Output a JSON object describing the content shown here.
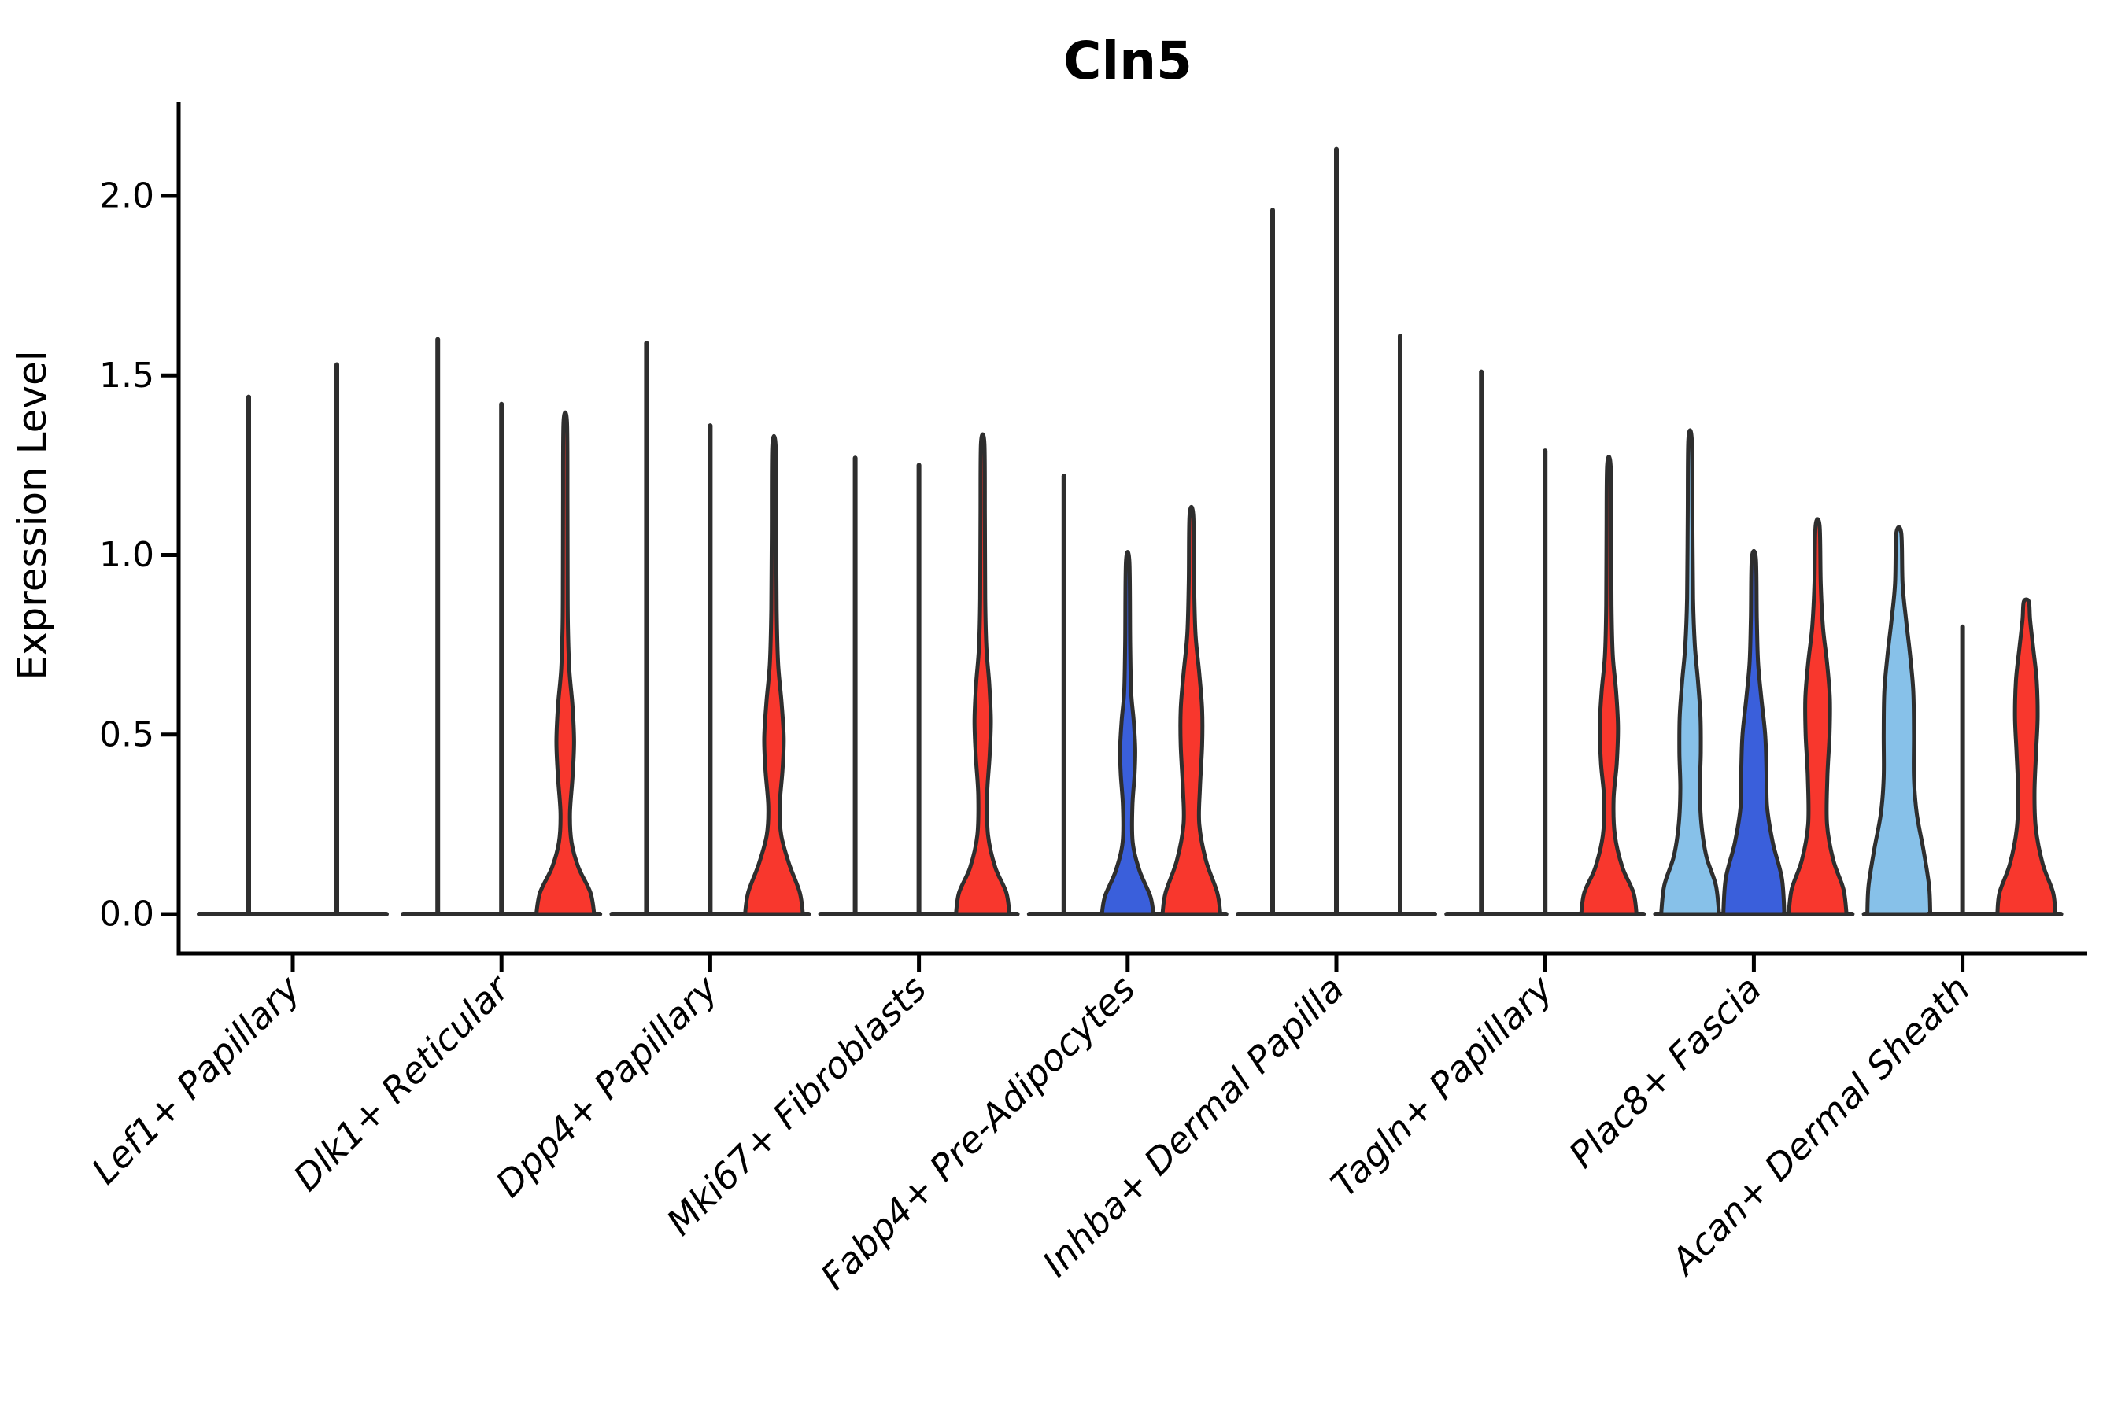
{
  "chart_data": {
    "type": "violin",
    "title": "Cln5",
    "ylabel": "Expression Level",
    "xlabel": "",
    "ylim": [
      0,
      2.26
    ],
    "grid": false,
    "legend": "none",
    "yticks": [
      {
        "value": 0.0,
        "label": "0.0"
      },
      {
        "value": 0.5,
        "label": "0.5"
      },
      {
        "value": 1.0,
        "label": "1.0"
      },
      {
        "value": 1.5,
        "label": "1.5"
      },
      {
        "value": 2.0,
        "label": "2.0"
      }
    ],
    "colors": {
      "red": "#F8372D",
      "blue": "#3A5FDB",
      "light_blue": "#87C1E9",
      "outline": "#2E2E2E",
      "baseline": "#2E2E2E",
      "axis": "#000000"
    },
    "categories": [
      {
        "label": "Lef1+ Papillary",
        "violins": [
          {
            "kind": "line",
            "max": 1.44
          },
          {
            "kind": "line",
            "max": 1.53
          }
        ]
      },
      {
        "label": "Dlk1+ Reticular",
        "violins": [
          {
            "kind": "line",
            "max": 1.6
          },
          {
            "kind": "line",
            "max": 1.42
          },
          {
            "kind": "violin",
            "color": "red",
            "max": 1.37,
            "profile": [
              [
                0,
                0.92
              ],
              [
                0.06,
                0.8
              ],
              [
                0.13,
                0.42
              ],
              [
                0.2,
                0.2
              ],
              [
                0.28,
                0.15
              ],
              [
                0.38,
                0.23
              ],
              [
                0.48,
                0.28
              ],
              [
                0.58,
                0.23
              ],
              [
                0.68,
                0.13
              ],
              [
                0.8,
                0.085
              ],
              [
                0.95,
                0.075
              ],
              [
                1.15,
                0.07
              ],
              [
                1.37,
                0.055
              ]
            ]
          }
        ]
      },
      {
        "label": "Dpp4+ Papillary",
        "violins": [
          {
            "kind": "line",
            "max": 1.59
          },
          {
            "kind": "line",
            "max": 1.36
          },
          {
            "kind": "violin",
            "color": "red",
            "max": 1.3,
            "profile": [
              [
                0,
                0.92
              ],
              [
                0.06,
                0.82
              ],
              [
                0.14,
                0.48
              ],
              [
                0.22,
                0.23
              ],
              [
                0.3,
                0.18
              ],
              [
                0.4,
                0.27
              ],
              [
                0.49,
                0.31
              ],
              [
                0.59,
                0.24
              ],
              [
                0.7,
                0.13
              ],
              [
                0.85,
                0.085
              ],
              [
                1.05,
                0.07
              ],
              [
                1.3,
                0.055
              ]
            ]
          }
        ]
      },
      {
        "label": "Mki67+ Fibroblasts",
        "violins": [
          {
            "kind": "line",
            "max": 1.27
          },
          {
            "kind": "line",
            "max": 1.25
          },
          {
            "kind": "violin",
            "color": "red",
            "max": 1.31,
            "profile": [
              [
                0,
                0.85
              ],
              [
                0.06,
                0.75
              ],
              [
                0.13,
                0.4
              ],
              [
                0.22,
                0.17
              ],
              [
                0.33,
                0.14
              ],
              [
                0.44,
                0.22
              ],
              [
                0.54,
                0.26
              ],
              [
                0.64,
                0.21
              ],
              [
                0.74,
                0.12
              ],
              [
                0.88,
                0.08
              ],
              [
                1.1,
                0.07
              ],
              [
                1.31,
                0.055
              ]
            ]
          }
        ]
      },
      {
        "label": "Fabp4+ Pre-Adipocytes",
        "violins": [
          {
            "kind": "line",
            "max": 1.22
          },
          {
            "kind": "violin",
            "color": "blue",
            "max": 0.98,
            "profile": [
              [
                0,
                0.82
              ],
              [
                0.05,
                0.72
              ],
              [
                0.12,
                0.38
              ],
              [
                0.2,
                0.16
              ],
              [
                0.3,
                0.15
              ],
              [
                0.39,
                0.22
              ],
              [
                0.46,
                0.24
              ],
              [
                0.54,
                0.19
              ],
              [
                0.62,
                0.11
              ],
              [
                0.75,
                0.08
              ],
              [
                0.98,
                0.055
              ]
            ]
          },
          {
            "kind": "violin",
            "color": "red",
            "max": 1.11,
            "profile": [
              [
                0,
                0.92
              ],
              [
                0.06,
                0.82
              ],
              [
                0.15,
                0.46
              ],
              [
                0.25,
                0.25
              ],
              [
                0.35,
                0.27
              ],
              [
                0.47,
                0.34
              ],
              [
                0.57,
                0.34
              ],
              [
                0.67,
                0.25
              ],
              [
                0.78,
                0.13
              ],
              [
                0.92,
                0.085
              ],
              [
                1.11,
                0.06
              ]
            ]
          }
        ]
      },
      {
        "label": "Inhba+ Dermal Papilla",
        "violins": [
          {
            "kind": "line",
            "max": 1.96
          },
          {
            "kind": "line",
            "max": 2.13
          },
          {
            "kind": "line",
            "max": 1.61
          }
        ]
      },
      {
        "label": "Tagln+ Papillary",
        "violins": [
          {
            "kind": "line",
            "max": 1.51
          },
          {
            "kind": "line",
            "max": 1.29
          },
          {
            "kind": "violin",
            "color": "red",
            "max": 1.25,
            "profile": [
              [
                0,
                0.88
              ],
              [
                0.06,
                0.78
              ],
              [
                0.13,
                0.43
              ],
              [
                0.22,
                0.19
              ],
              [
                0.32,
                0.15
              ],
              [
                0.42,
                0.25
              ],
              [
                0.52,
                0.29
              ],
              [
                0.62,
                0.23
              ],
              [
                0.72,
                0.125
              ],
              [
                0.86,
                0.085
              ],
              [
                1.06,
                0.075
              ],
              [
                1.25,
                0.055
              ]
            ]
          }
        ]
      },
      {
        "label": "Plac8+ Fascia",
        "violins": [
          {
            "kind": "violin",
            "color": "light_blue",
            "max": 1.32,
            "profile": [
              [
                0,
                0.92
              ],
              [
                0.08,
                0.82
              ],
              [
                0.16,
                0.52
              ],
              [
                0.25,
                0.36
              ],
              [
                0.35,
                0.31
              ],
              [
                0.45,
                0.34
              ],
              [
                0.55,
                0.33
              ],
              [
                0.65,
                0.25
              ],
              [
                0.75,
                0.15
              ],
              [
                0.88,
                0.095
              ],
              [
                1.1,
                0.075
              ],
              [
                1.32,
                0.055
              ]
            ]
          },
          {
            "kind": "violin",
            "color": "blue",
            "max": 0.99,
            "profile": [
              [
                0,
                0.97
              ],
              [
                0.1,
                0.89
              ],
              [
                0.2,
                0.6
              ],
              [
                0.3,
                0.42
              ],
              [
                0.4,
                0.4
              ],
              [
                0.5,
                0.36
              ],
              [
                0.6,
                0.24
              ],
              [
                0.7,
                0.135
              ],
              [
                0.82,
                0.095
              ],
              [
                0.99,
                0.065
              ]
            ]
          },
          {
            "kind": "violin",
            "color": "red",
            "max": 1.08,
            "profile": [
              [
                0,
                0.92
              ],
              [
                0.07,
                0.82
              ],
              [
                0.15,
                0.5
              ],
              [
                0.25,
                0.3
              ],
              [
                0.38,
                0.31
              ],
              [
                0.5,
                0.38
              ],
              [
                0.6,
                0.39
              ],
              [
                0.7,
                0.3
              ],
              [
                0.8,
                0.17
              ],
              [
                0.92,
                0.1
              ],
              [
                1.08,
                0.065
              ]
            ]
          }
        ]
      },
      {
        "label": "Acan+ Dermal Sheath",
        "violins": [
          {
            "kind": "violin",
            "color": "light_blue",
            "max": 1.06,
            "profile": [
              [
                0,
                1.0
              ],
              [
                0.08,
                0.96
              ],
              [
                0.18,
                0.78
              ],
              [
                0.28,
                0.57
              ],
              [
                0.38,
                0.48
              ],
              [
                0.5,
                0.48
              ],
              [
                0.62,
                0.46
              ],
              [
                0.72,
                0.36
              ],
              [
                0.82,
                0.23
              ],
              [
                0.92,
                0.12
              ],
              [
                1.06,
                0.08
              ]
            ]
          },
          {
            "kind": "line",
            "max": 0.8
          },
          {
            "kind": "violin",
            "color": "red",
            "max": 0.87,
            "profile": [
              [
                0,
                0.92
              ],
              [
                0.06,
                0.85
              ],
              [
                0.14,
                0.52
              ],
              [
                0.24,
                0.3
              ],
              [
                0.34,
                0.26
              ],
              [
                0.45,
                0.31
              ],
              [
                0.55,
                0.36
              ],
              [
                0.65,
                0.33
              ],
              [
                0.74,
                0.22
              ],
              [
                0.82,
                0.12
              ],
              [
                0.87,
                0.08
              ]
            ]
          }
        ]
      }
    ]
  }
}
